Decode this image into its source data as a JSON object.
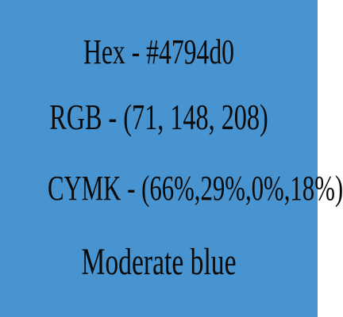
{
  "colors": {
    "background": "#4794d0",
    "text": "#0a0a0a"
  },
  "swatch": {
    "hex_line": "Hex - #4794d0",
    "rgb_line": "RGB - (71, 148, 208)",
    "cymk_line": "CYMK - (66%,29%,0%,18%)",
    "color_name": "Moderate blue"
  }
}
